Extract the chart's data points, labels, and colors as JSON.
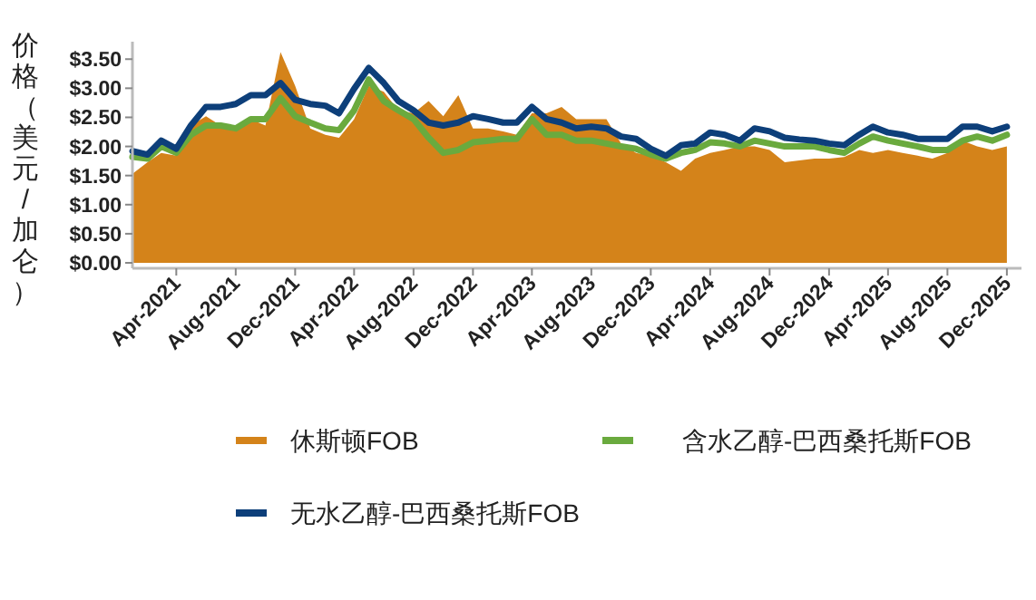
{
  "chart_data": {
    "type": "area",
    "ylabel": "价格（美元/加仑）",
    "x": [
      "2021-01",
      "2021-02",
      "2021-03",
      "2021-04",
      "2021-05",
      "2021-06",
      "2021-07",
      "2021-08",
      "2021-09",
      "2021-10",
      "2021-11",
      "2021-12",
      "2022-01",
      "2022-02",
      "2022-03",
      "2022-04",
      "2022-05",
      "2022-06",
      "2022-07",
      "2022-08",
      "2022-09",
      "2022-10",
      "2022-11",
      "2022-12",
      "2023-01",
      "2023-02",
      "2023-03",
      "2023-04",
      "2023-05",
      "2023-06",
      "2023-07",
      "2023-08",
      "2023-09",
      "2023-10",
      "2023-11",
      "2023-12",
      "2024-01",
      "2024-02",
      "2024-03",
      "2024-04",
      "2024-05",
      "2024-06",
      "2024-07",
      "2024-08",
      "2024-09",
      "2024-10",
      "2024-11",
      "2024-12",
      "2025-01",
      "2025-02",
      "2025-03",
      "2025-04",
      "2025-05",
      "2025-06",
      "2025-07",
      "2025-08",
      "2025-09",
      "2025-10",
      "2025-11",
      "2025-12"
    ],
    "series": [
      {
        "name": "休斯顿FOB",
        "color": "#d4831a",
        "values": [
          1.53,
          1.73,
          1.89,
          1.84,
          2.36,
          2.52,
          2.36,
          2.36,
          2.47,
          2.36,
          3.62,
          3.04,
          2.31,
          2.2,
          2.15,
          2.47,
          3.04,
          2.94,
          2.62,
          2.57,
          2.78,
          2.52,
          2.88,
          2.31,
          2.31,
          2.26,
          2.2,
          2.57,
          2.57,
          2.68,
          2.47,
          2.47,
          2.47,
          2.05,
          1.89,
          1.84,
          1.73,
          1.58,
          1.79,
          1.89,
          1.94,
          2.0,
          2.0,
          1.94,
          1.73,
          1.76,
          1.79,
          1.79,
          1.82,
          1.94,
          1.89,
          1.94,
          1.89,
          1.84,
          1.79,
          1.89,
          2.1,
          2.0,
          1.94,
          2.0
        ]
      },
      {
        "name": "含水乙醇-巴西桑托斯FOB",
        "type": "line",
        "color": "#6aaa3e",
        "values": [
          1.82,
          1.79,
          2.0,
          1.89,
          2.2,
          2.36,
          2.36,
          2.31,
          2.47,
          2.47,
          2.83,
          2.52,
          2.41,
          2.31,
          2.28,
          2.62,
          3.15,
          2.78,
          2.62,
          2.47,
          2.15,
          1.89,
          1.94,
          2.07,
          2.1,
          2.13,
          2.13,
          2.47,
          2.2,
          2.2,
          2.1,
          2.1,
          2.05,
          2.0,
          1.96,
          1.86,
          1.79,
          1.89,
          1.94,
          2.07,
          2.05,
          2.0,
          2.1,
          2.05,
          2.0,
          2.0,
          2.0,
          1.94,
          1.89,
          2.05,
          2.17,
          2.1,
          2.05,
          2.0,
          1.94,
          1.94,
          2.1,
          2.17,
          2.1,
          2.2
        ]
      },
      {
        "name": "无水乙醇-巴西桑托斯FOB",
        "type": "line",
        "color": "#0d3f7a",
        "values": [
          1.92,
          1.86,
          2.1,
          1.96,
          2.36,
          2.68,
          2.68,
          2.73,
          2.88,
          2.88,
          3.09,
          2.8,
          2.73,
          2.7,
          2.57,
          2.99,
          3.35,
          3.09,
          2.78,
          2.62,
          2.41,
          2.36,
          2.41,
          2.52,
          2.47,
          2.41,
          2.41,
          2.68,
          2.47,
          2.41,
          2.31,
          2.34,
          2.31,
          2.17,
          2.13,
          1.96,
          1.84,
          2.02,
          2.05,
          2.24,
          2.2,
          2.1,
          2.31,
          2.26,
          2.15,
          2.12,
          2.1,
          2.05,
          2.02,
          2.2,
          2.34,
          2.24,
          2.2,
          2.13,
          2.13,
          2.13,
          2.34,
          2.34,
          2.26,
          2.34
        ]
      }
    ],
    "xlim": [
      "2021-01-01",
      "2025-12-31"
    ],
    "xticks": [
      {
        "value": "2021-04",
        "label": "Apr-2021"
      },
      {
        "value": "2021-08",
        "label": "Aug-2021"
      },
      {
        "value": "2021-12",
        "label": "Dec-2021"
      },
      {
        "value": "2022-04",
        "label": "Apr-2022"
      },
      {
        "value": "2022-08",
        "label": "Aug-2022"
      },
      {
        "value": "2022-12",
        "label": "Dec-2022"
      },
      {
        "value": "2023-04",
        "label": "Apr-2023"
      },
      {
        "value": "2023-08",
        "label": "Aug-2023"
      },
      {
        "value": "2023-12",
        "label": "Dec-2023"
      },
      {
        "value": "2024-04",
        "label": "Apr-2024"
      },
      {
        "value": "2024-08",
        "label": "Aug-2024"
      },
      {
        "value": "2024-12",
        "label": "Dec-2024"
      },
      {
        "value": "2025-04",
        "label": "Apr-2025"
      },
      {
        "value": "2025-08",
        "label": "Aug-2025"
      },
      {
        "value": "2025-12",
        "label": "Dec-2025"
      }
    ],
    "ylim": [
      0,
      3.8
    ],
    "yticks": [
      {
        "value": 0,
        "label": "$0.00"
      },
      {
        "value": 0.5,
        "label": "$0.50"
      },
      {
        "value": 1,
        "label": "$1.00"
      },
      {
        "value": 1.5,
        "label": "$1.50"
      },
      {
        "value": 2,
        "label": "$2.00"
      },
      {
        "value": 2.5,
        "label": "$2.50"
      },
      {
        "value": 3,
        "label": "$3.00"
      },
      {
        "value": 3.5,
        "label": "$3.50"
      }
    ],
    "legend": "bottom"
  }
}
